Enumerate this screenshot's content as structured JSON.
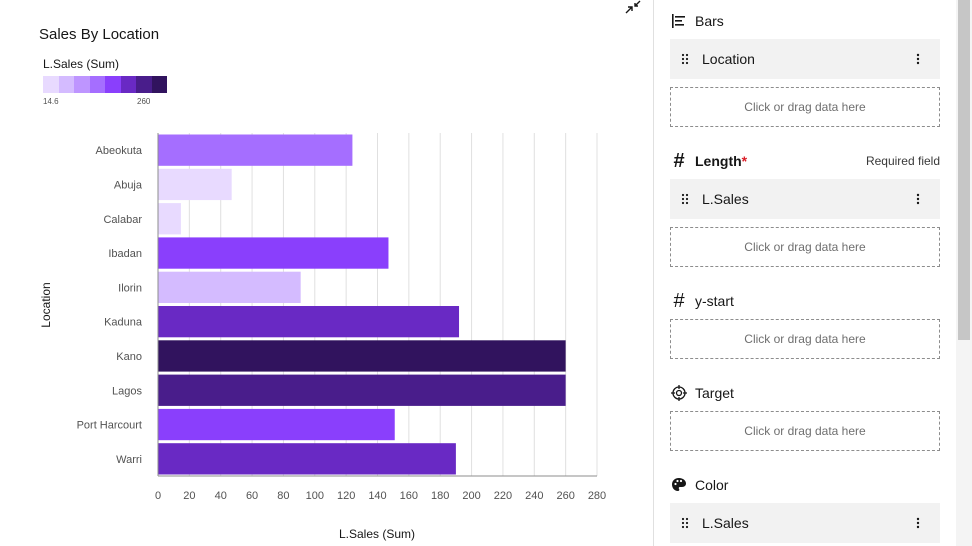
{
  "chart_data": {
    "type": "bar",
    "orientation": "horizontal",
    "title": "Sales By Location",
    "xlabel": "L.Sales (Sum)",
    "ylabel": "Location",
    "categories": [
      "Abeokuta",
      "Abuja",
      "Calabar",
      "Ibadan",
      "Ilorin",
      "Kaduna",
      "Kano",
      "Lagos",
      "Port Harcourt",
      "Warri"
    ],
    "values": [
      124,
      47,
      14.6,
      147,
      91,
      192,
      260,
      260,
      151,
      190
    ],
    "colors": [
      "#a56eff",
      "#e8daff",
      "#e8daff",
      "#8a3ffc",
      "#d4bbff",
      "#6929c4",
      "#31135e",
      "#491d8b",
      "#8a3ffc",
      "#6929c4"
    ],
    "xlim": [
      0,
      280
    ],
    "xticks": [
      0,
      20,
      40,
      60,
      80,
      100,
      120,
      140,
      160,
      180,
      200,
      220,
      240,
      260,
      280
    ],
    "grid": "vertical",
    "legend": {
      "title": "L.Sales (Sum)",
      "min_label": "14.6",
      "max_label": "260",
      "scale": [
        "#e8daff",
        "#d4bbff",
        "#be95ff",
        "#a56eff",
        "#8a3ffc",
        "#6929c4",
        "#491d8b",
        "#31135e"
      ],
      "placement": "top-left"
    }
  },
  "panel": {
    "bars": {
      "label": "Bars",
      "icon": "bars-icon",
      "chip": "Location",
      "drop": "Click or drag data here"
    },
    "length": {
      "label": "Length",
      "star": "*",
      "required": "Required field",
      "icon": "hash-icon",
      "chip": "L.Sales",
      "drop": "Click or drag data here"
    },
    "ystart": {
      "label": "y-start",
      "icon": "hash-icon",
      "drop": "Click or drag data here"
    },
    "target": {
      "label": "Target",
      "icon": "target-icon",
      "drop": "Click or drag data here"
    },
    "color": {
      "label": "Color",
      "icon": "palette-icon",
      "chip": "L.Sales"
    }
  }
}
